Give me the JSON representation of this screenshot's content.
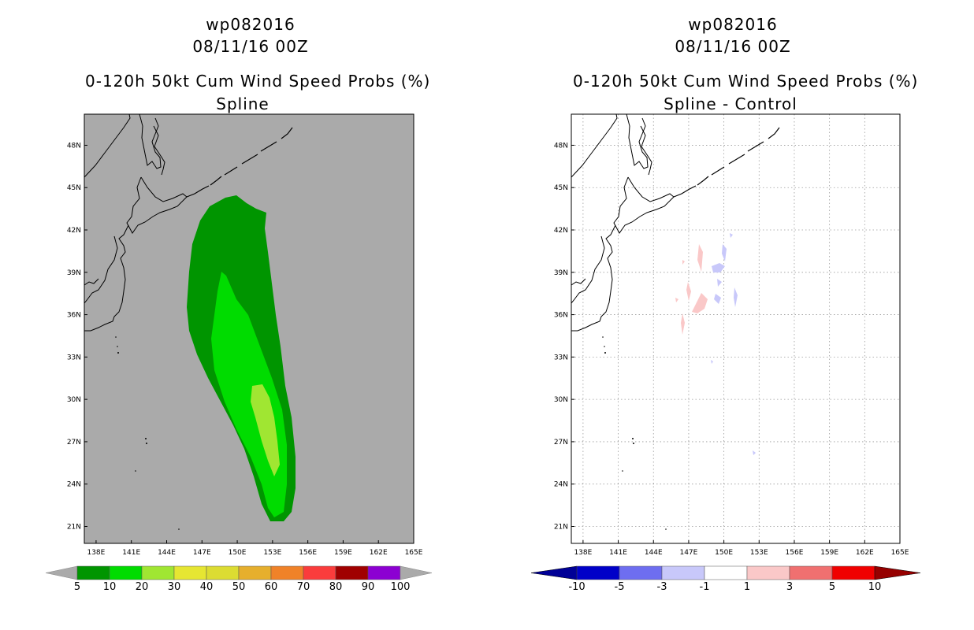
{
  "chart_data": [
    {
      "type": "heatmap",
      "storm_id": "wp082016",
      "date": "08/11/16 00Z",
      "title": "0-120h 50kt Cum Wind Speed Probs (%)",
      "subtitle": "Spline",
      "x_ticks": [
        "138E",
        "141E",
        "144E",
        "147E",
        "150E",
        "153E",
        "156E",
        "159E",
        "162E",
        "165E"
      ],
      "y_ticks": [
        "48N",
        "45N",
        "42N",
        "39N",
        "36N",
        "33N",
        "30N",
        "27N",
        "24N",
        "21N"
      ],
      "x_range": [
        137,
        165
      ],
      "y_range": [
        19.8,
        50.2
      ],
      "grid": false,
      "colorbar": {
        "labels": [
          "5",
          "10",
          "20",
          "30",
          "40",
          "50",
          "60",
          "70",
          "80",
          "90",
          "100"
        ],
        "colors": [
          "#009500",
          "#00dc00",
          "#a0e632",
          "#e6e632",
          "#dcdc32",
          "#e6af2d",
          "#f08228",
          "#fa3c3c",
          "#a00000",
          "#8c00d2"
        ],
        "extension_color": "#aaaaaa"
      },
      "background_color": "#aaaaaa",
      "filled_levels": [
        {
          "level": "5-10",
          "color": "#009500"
        },
        {
          "level": "10-20",
          "color": "#00dc00"
        },
        {
          "level": "20-30",
          "color": "#a0e632"
        }
      ]
    },
    {
      "type": "heatmap",
      "storm_id": "wp082016",
      "date": "08/11/16 00Z",
      "title": "0-120h 50kt Cum Wind Speed Probs (%)",
      "subtitle": "Spline - Control",
      "x_ticks": [
        "138E",
        "141E",
        "144E",
        "147E",
        "150E",
        "153E",
        "156E",
        "159E",
        "162E",
        "165E"
      ],
      "y_ticks": [
        "48N",
        "45N",
        "42N",
        "39N",
        "36N",
        "33N",
        "30N",
        "27N",
        "24N",
        "21N"
      ],
      "x_range": [
        137,
        165
      ],
      "y_range": [
        19.8,
        50.2
      ],
      "grid": true,
      "colorbar": {
        "labels": [
          "-10",
          "-5",
          "-3",
          "-1",
          "1",
          "3",
          "5",
          "10"
        ],
        "colors": [
          "#0000c8",
          "#6e6ef0",
          "#c8c8fa",
          "#ffffff",
          "#fac8c8",
          "#f07070",
          "#f00000"
        ],
        "left_extension_color": "#000096",
        "right_extension_color": "#960000"
      },
      "background_color": "#ffffff",
      "filled_levels": [
        {
          "level": "1-3",
          "color": "#fac8c8"
        },
        {
          "level": "-3--1",
          "color": "#c8c8fa"
        }
      ]
    }
  ]
}
